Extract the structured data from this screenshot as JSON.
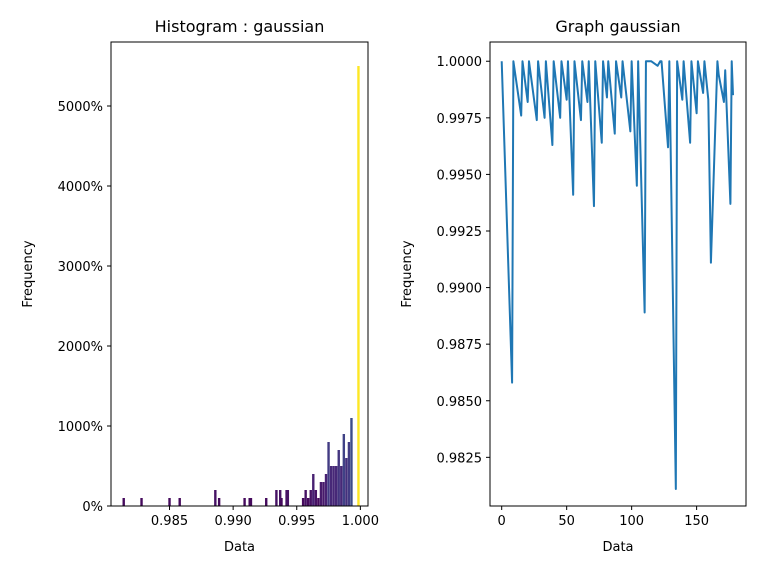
{
  "chart_data": [
    {
      "type": "bar",
      "title": "Histogram : gaussian",
      "xlabel": "Data",
      "ylabel": "Frequency",
      "xlim": [
        0.9804,
        1.0006
      ],
      "ylim": [
        0,
        5800
      ],
      "x_ticks": [
        0.985,
        0.99,
        0.995,
        1.0
      ],
      "x_tick_labels": [
        "0.985",
        "0.990",
        "0.995",
        "1.000"
      ],
      "y_ticks": [
        0,
        1000,
        2000,
        3000,
        4000,
        5000
      ],
      "y_tick_labels": [
        "0%",
        "1000%",
        "2000%",
        "3000%",
        "4000%",
        "5000%"
      ],
      "colormap": "viridis",
      "bars": [
        {
          "x": 0.9814,
          "value": 100
        },
        {
          "x": 0.9828,
          "value": 100
        },
        {
          "x": 0.985,
          "value": 100
        },
        {
          "x": 0.9858,
          "value": 100
        },
        {
          "x": 0.9886,
          "value": 200
        },
        {
          "x": 0.9889,
          "value": 100
        },
        {
          "x": 0.9909,
          "value": 100
        },
        {
          "x": 0.9913,
          "value": 100
        },
        {
          "x": 0.9914,
          "value": 100
        },
        {
          "x": 0.9926,
          "value": 100
        },
        {
          "x": 0.9934,
          "value": 200
        },
        {
          "x": 0.9937,
          "value": 200
        },
        {
          "x": 0.9938,
          "value": 100
        },
        {
          "x": 0.9942,
          "value": 200
        },
        {
          "x": 0.9943,
          "value": 200
        },
        {
          "x": 0.9955,
          "value": 100
        },
        {
          "x": 0.9957,
          "value": 200
        },
        {
          "x": 0.9959,
          "value": 100
        },
        {
          "x": 0.9961,
          "value": 200
        },
        {
          "x": 0.9963,
          "value": 400
        },
        {
          "x": 0.9965,
          "value": 200
        },
        {
          "x": 0.9967,
          "value": 100
        },
        {
          "x": 0.9969,
          "value": 300
        },
        {
          "x": 0.9971,
          "value": 300
        },
        {
          "x": 0.9973,
          "value": 400
        },
        {
          "x": 0.9975,
          "value": 800
        },
        {
          "x": 0.9977,
          "value": 500
        },
        {
          "x": 0.9979,
          "value": 500
        },
        {
          "x": 0.9981,
          "value": 500
        },
        {
          "x": 0.9983,
          "value": 700
        },
        {
          "x": 0.9985,
          "value": 500
        },
        {
          "x": 0.9987,
          "value": 900
        },
        {
          "x": 0.9989,
          "value": 600
        },
        {
          "x": 0.9991,
          "value": 800
        },
        {
          "x": 0.9993,
          "value": 1100
        },
        {
          "x": 0.99985,
          "value": 5500
        }
      ]
    },
    {
      "type": "line",
      "title": "Graph gaussian",
      "xlabel": "Data",
      "ylabel": "Frequency",
      "xlim": [
        -9,
        188
      ],
      "ylim": [
        0.98035,
        1.00085
      ],
      "x_ticks": [
        0,
        50,
        100,
        150
      ],
      "x_tick_labels": [
        "0",
        "50",
        "100",
        "150"
      ],
      "y_ticks": [
        0.9825,
        0.985,
        0.9875,
        0.99,
        0.9925,
        0.995,
        0.9975,
        1.0
      ],
      "y_tick_labels": [
        "0.9825",
        "0.9850",
        "0.9875",
        "0.9900",
        "0.9925",
        "0.9950",
        "0.9975",
        "1.0000"
      ],
      "series": [
        {
          "color": "#1f77b4",
          "x": [
            0,
            8,
            9,
            15,
            16,
            20,
            21,
            27,
            28,
            33,
            34,
            39,
            40,
            45,
            46,
            50,
            51,
            55,
            56,
            61,
            62,
            66,
            67,
            71,
            72,
            77,
            78,
            81,
            82,
            87,
            88,
            92,
            93,
            99,
            100,
            104,
            105,
            110,
            111,
            115,
            120,
            122,
            123,
            128,
            129,
            134,
            135,
            139,
            140,
            145,
            146,
            150,
            151,
            155,
            156,
            159,
            161,
            166,
            167,
            171,
            172,
            176,
            177,
            178
          ],
          "y": [
            1.0,
            0.9858,
            1.0,
            0.9976,
            1.0,
            0.9982,
            1.0,
            0.9974,
            1.0,
            0.9975,
            1.0,
            0.9963,
            1.0,
            0.9975,
            1.0,
            0.9983,
            1.0,
            0.9941,
            1.0,
            0.9974,
            1.0,
            0.9982,
            1.0,
            0.9936,
            1.0,
            0.9964,
            1.0,
            0.9984,
            1.0,
            0.9968,
            1.0,
            0.9984,
            1.0,
            0.9969,
            1.0,
            0.9945,
            1.0,
            0.9889,
            1.0,
            1.0,
            0.9998,
            1.0,
            1.0,
            0.9962,
            1.0,
            0.9811,
            1.0,
            0.9983,
            1.0,
            0.9964,
            1.0,
            0.9977,
            1.0,
            0.9986,
            1.0,
            0.9983,
            0.9911,
            1.0,
            0.9994,
            0.9982,
            0.9996,
            0.9937,
            1.0,
            0.9985
          ]
        }
      ]
    }
  ]
}
